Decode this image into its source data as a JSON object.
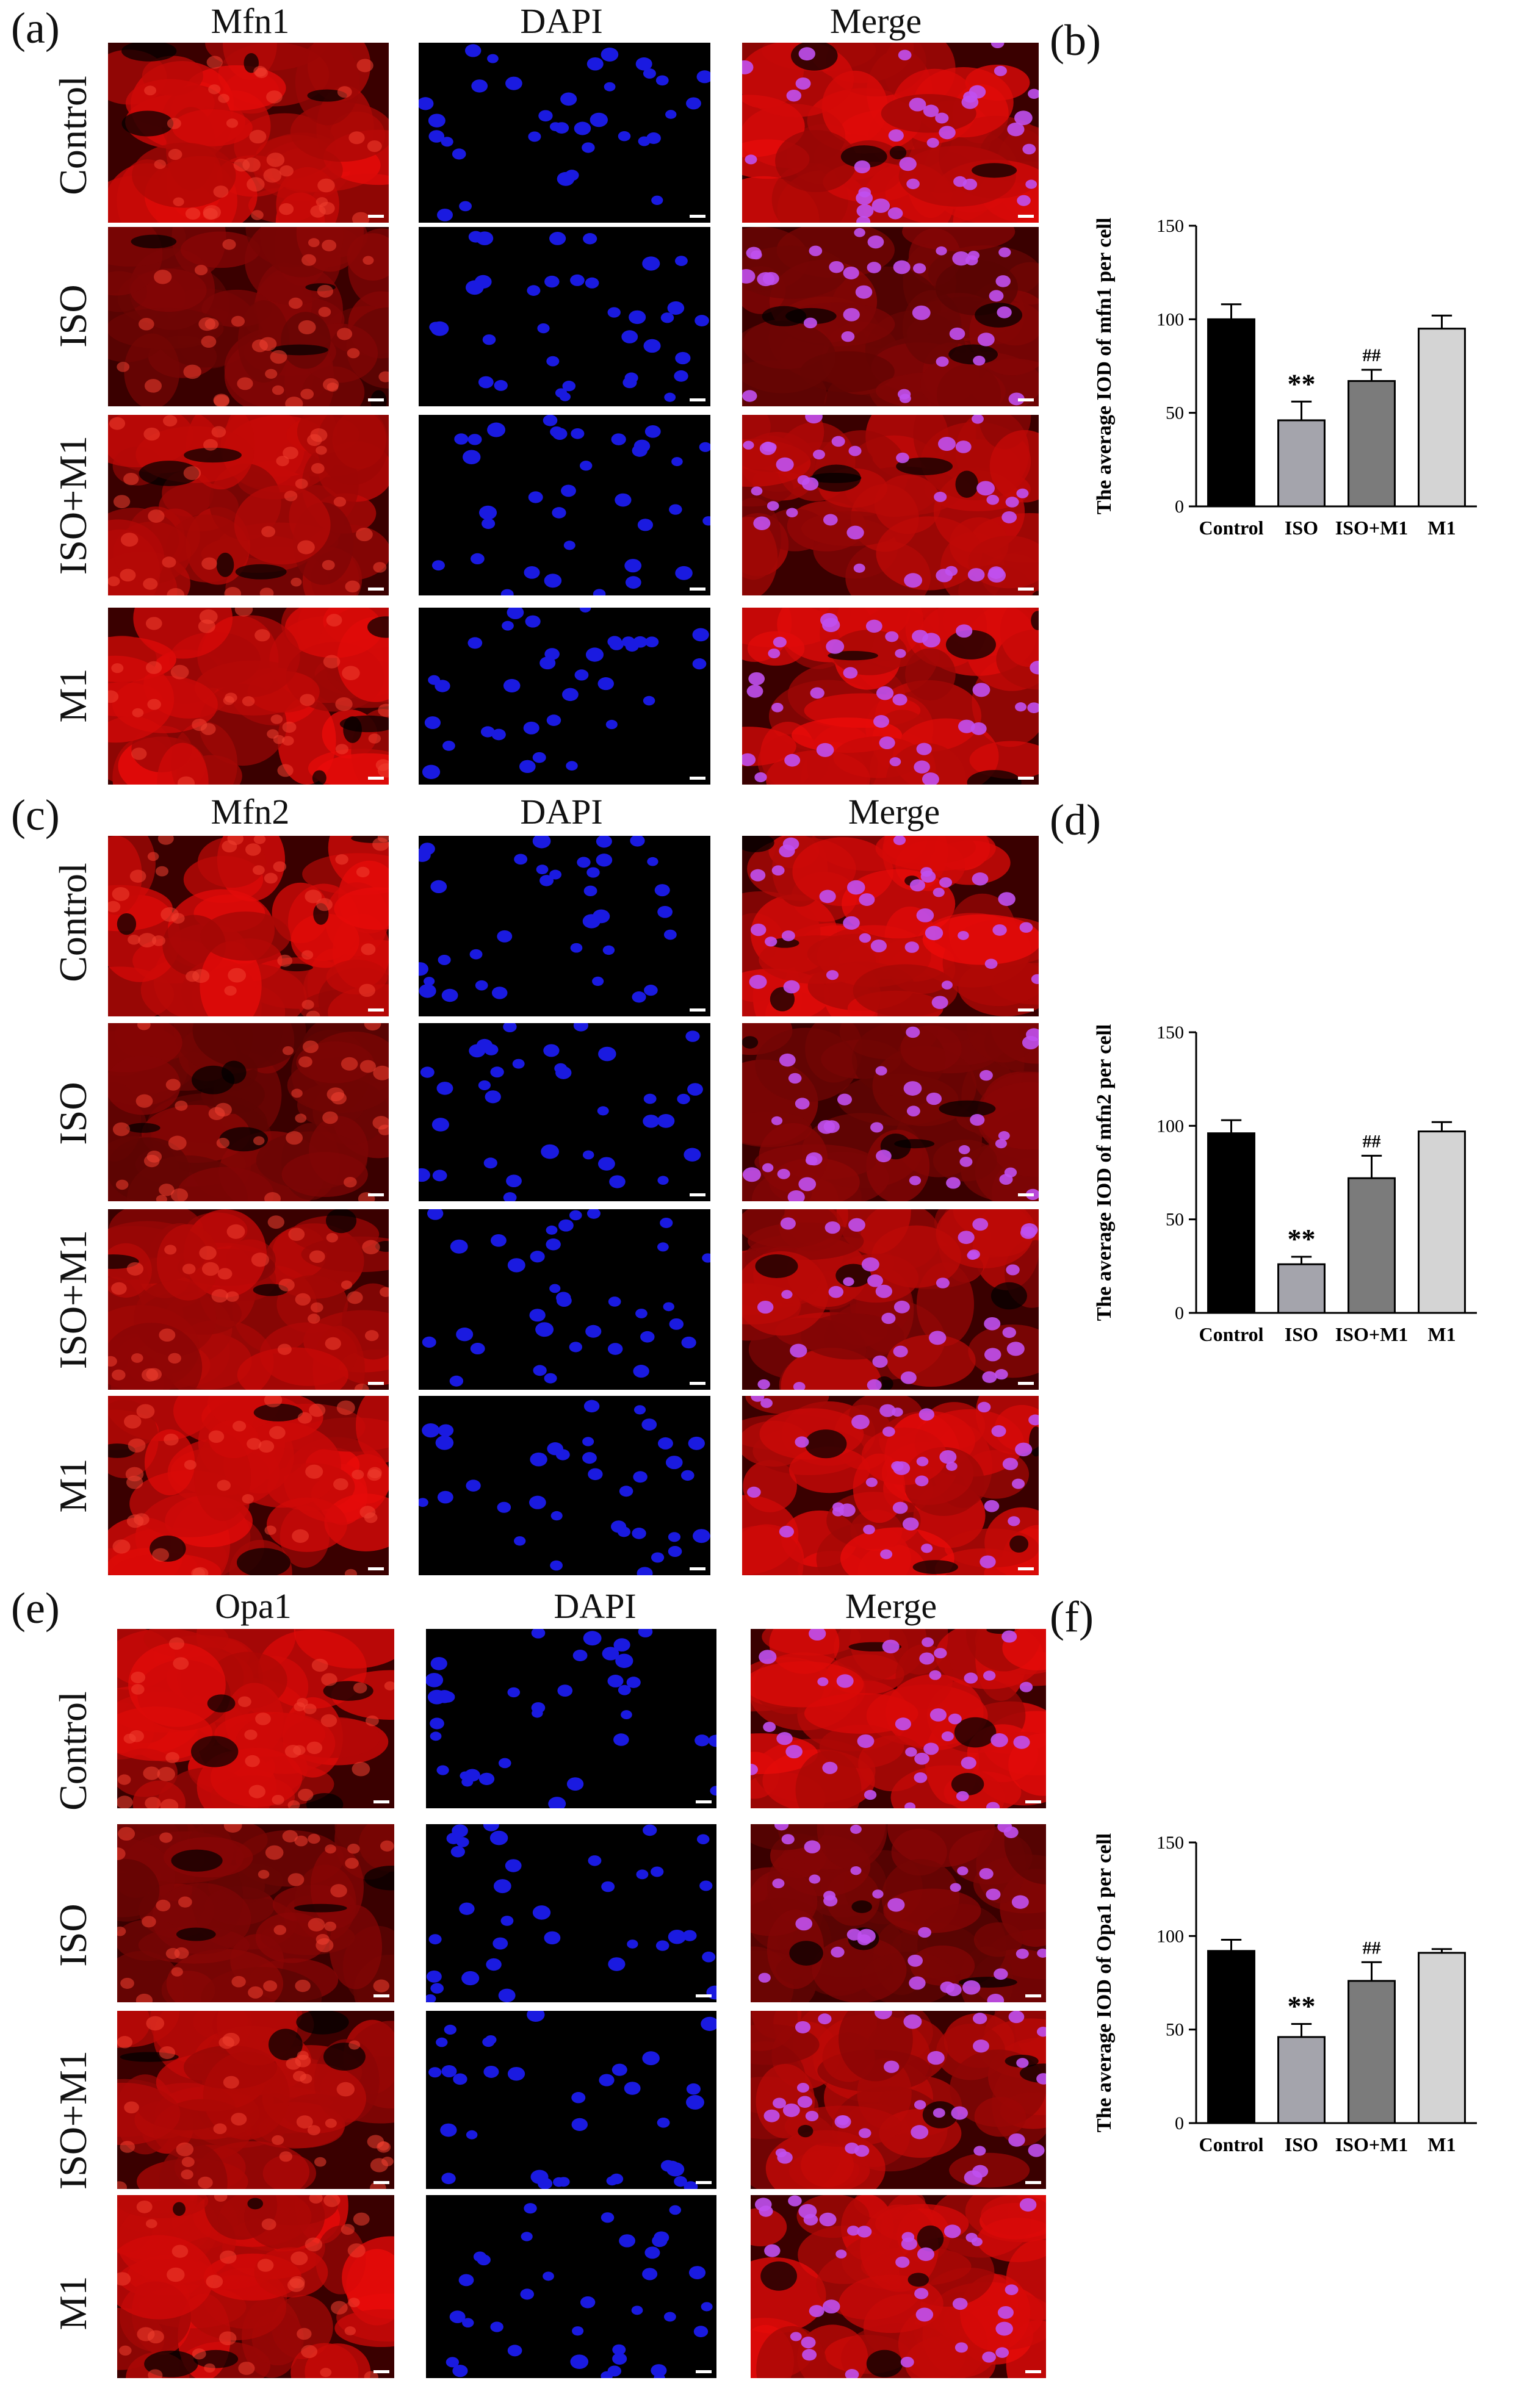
{
  "figure": {
    "panels": [
      {
        "image_letter": "(a)",
        "chart_letter": "(b)",
        "columns": [
          "Mfn1",
          "DAPI",
          "Merge"
        ],
        "rows": [
          "Control",
          "ISO",
          "ISO+M1",
          "M1"
        ]
      },
      {
        "image_letter": "(c)",
        "chart_letter": "(d)",
        "columns": [
          "Mfn2",
          "DAPI",
          "Merge"
        ],
        "rows": [
          "Control",
          "ISO",
          "ISO+M1",
          "M1"
        ]
      },
      {
        "image_letter": "(e)",
        "chart_letter": "(f)",
        "columns": [
          "Opa1",
          "DAPI",
          "Merge"
        ],
        "rows": [
          "Control",
          "ISO",
          "ISO+M1",
          "M1"
        ]
      }
    ],
    "colors": {
      "stain_red": "#d81010",
      "stain_blue": "#1a1ae0",
      "merge_nucleus": "#c050f0",
      "background": "#000000"
    }
  },
  "chart_data": [
    {
      "type": "bar",
      "ylabel": "The average IOD of mfn1 per cell",
      "categories": [
        "Control",
        "ISO",
        "ISO+M1",
        "M1"
      ],
      "values": [
        100,
        46,
        67,
        95
      ],
      "errors": [
        8,
        10,
        6,
        7
      ],
      "annotations": [
        "",
        "**",
        "##",
        ""
      ],
      "ylim": [
        0,
        150
      ],
      "yticks": [
        0,
        50,
        100,
        150
      ],
      "bar_colors": [
        "#000000",
        "#a4a4ac",
        "#7b7b7b",
        "#d4d4d4"
      ]
    },
    {
      "type": "bar",
      "ylabel": "The average IOD of mfn2 per cell",
      "categories": [
        "Control",
        "ISO",
        "ISO+M1",
        "M1"
      ],
      "values": [
        96,
        26,
        72,
        97
      ],
      "errors": [
        7,
        4,
        12,
        5
      ],
      "annotations": [
        "",
        "**",
        "##",
        ""
      ],
      "ylim": [
        0,
        150
      ],
      "yticks": [
        0,
        50,
        100,
        150
      ],
      "bar_colors": [
        "#000000",
        "#a4a4ac",
        "#7b7b7b",
        "#d4d4d4"
      ]
    },
    {
      "type": "bar",
      "ylabel": "The average IOD of Opa1 per cell",
      "categories": [
        "Control",
        "ISO",
        "ISO+M1",
        "M1"
      ],
      "values": [
        92,
        46,
        76,
        91
      ],
      "errors": [
        6,
        7,
        10,
        2
      ],
      "annotations": [
        "",
        "**",
        "##",
        ""
      ],
      "ylim": [
        0,
        150
      ],
      "yticks": [
        0,
        50,
        100,
        150
      ],
      "bar_colors": [
        "#000000",
        "#a4a4ac",
        "#7b7b7b",
        "#d4d4d4"
      ]
    }
  ]
}
